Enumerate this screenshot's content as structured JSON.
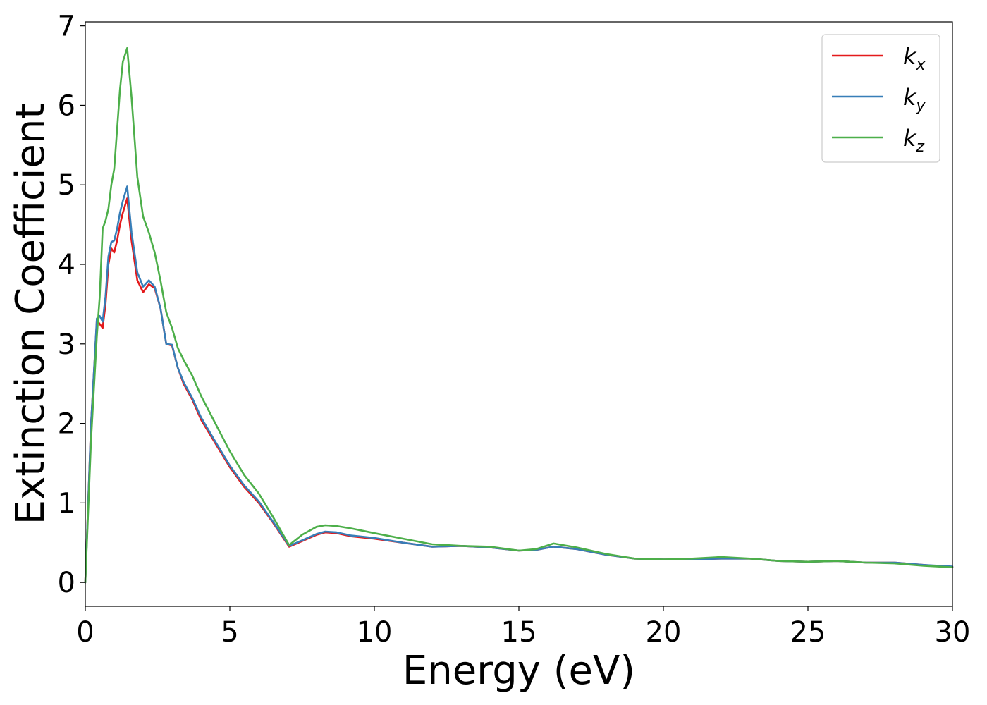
{
  "chart_data": {
    "type": "line",
    "xlabel": "Energy (eV)",
    "ylabel": "Extinction Coefficient",
    "xlim": [
      0,
      30
    ],
    "ylim": [
      -0.3,
      7.05
    ],
    "xticks": [
      0,
      5,
      10,
      15,
      20,
      25,
      30
    ],
    "xtick_labels": [
      "0",
      "5",
      "10",
      "15",
      "20",
      "25",
      "30"
    ],
    "yticks": [
      0,
      1,
      2,
      3,
      4,
      5,
      6,
      7
    ],
    "ytick_labels": [
      "0",
      "1",
      "2",
      "3",
      "4",
      "5",
      "6",
      "7"
    ],
    "grid": false,
    "legend_position": "top-right",
    "series": [
      {
        "name": "k_x",
        "legend_base": "k",
        "legend_sub": "x",
        "color": "#e41a1c",
        "x": [
          0,
          0.2,
          0.4,
          0.5,
          0.6,
          0.7,
          0.8,
          0.9,
          1.0,
          1.1,
          1.2,
          1.3,
          1.45,
          1.6,
          1.8,
          2.0,
          2.2,
          2.4,
          2.6,
          2.8,
          3.0,
          3.2,
          3.4,
          3.7,
          4.0,
          4.5,
          5.0,
          5.5,
          6.0,
          6.5,
          7.05,
          7.5,
          8.0,
          8.3,
          8.7,
          9.2,
          10.0,
          11.0,
          12.0,
          13.0,
          14.0,
          15.0,
          15.6,
          16.2,
          17.0,
          18.0,
          19.0,
          20.0,
          21.0,
          22.0,
          23.0,
          24.0,
          25.0,
          26.0,
          27.0,
          28.0,
          29.0,
          30.0
        ],
        "y": [
          0.0,
          2.0,
          3.3,
          3.25,
          3.2,
          3.5,
          4.0,
          4.2,
          4.15,
          4.3,
          4.5,
          4.65,
          4.83,
          4.3,
          3.8,
          3.65,
          3.75,
          3.7,
          3.45,
          3.0,
          2.98,
          2.7,
          2.5,
          2.3,
          2.05,
          1.75,
          1.45,
          1.2,
          1.0,
          0.75,
          0.45,
          0.52,
          0.6,
          0.63,
          0.62,
          0.58,
          0.55,
          0.5,
          0.45,
          0.46,
          0.44,
          0.4,
          0.41,
          0.45,
          0.42,
          0.35,
          0.3,
          0.29,
          0.29,
          0.3,
          0.3,
          0.27,
          0.26,
          0.27,
          0.25,
          0.25,
          0.22,
          0.19
        ]
      },
      {
        "name": "k_y",
        "legend_base": "k",
        "legend_sub": "y",
        "color": "#377eb8",
        "x": [
          0,
          0.2,
          0.4,
          0.5,
          0.6,
          0.7,
          0.8,
          0.9,
          1.0,
          1.1,
          1.2,
          1.3,
          1.45,
          1.6,
          1.8,
          2.0,
          2.2,
          2.4,
          2.6,
          2.8,
          3.0,
          3.2,
          3.4,
          3.7,
          4.0,
          4.5,
          5.0,
          5.5,
          6.0,
          6.5,
          7.05,
          7.5,
          8.0,
          8.3,
          8.7,
          9.2,
          10.0,
          11.0,
          12.0,
          13.0,
          14.0,
          15.0,
          15.6,
          16.2,
          17.0,
          18.0,
          19.0,
          20.0,
          21.0,
          22.0,
          23.0,
          24.0,
          25.0,
          26.0,
          27.0,
          28.0,
          29.0,
          30.0
        ],
        "y": [
          0.0,
          2.0,
          3.32,
          3.35,
          3.28,
          3.6,
          4.1,
          4.28,
          4.3,
          4.45,
          4.65,
          4.8,
          4.98,
          4.4,
          3.9,
          3.72,
          3.8,
          3.72,
          3.45,
          3.0,
          2.99,
          2.7,
          2.52,
          2.32,
          2.08,
          1.77,
          1.47,
          1.22,
          1.02,
          0.76,
          0.46,
          0.53,
          0.61,
          0.64,
          0.63,
          0.59,
          0.56,
          0.5,
          0.45,
          0.46,
          0.44,
          0.4,
          0.41,
          0.45,
          0.42,
          0.35,
          0.3,
          0.29,
          0.29,
          0.3,
          0.3,
          0.27,
          0.26,
          0.27,
          0.25,
          0.25,
          0.22,
          0.2
        ]
      },
      {
        "name": "k_z",
        "legend_base": "k",
        "legend_sub": "z",
        "color": "#4daf4a",
        "x": [
          0,
          0.2,
          0.4,
          0.5,
          0.6,
          0.7,
          0.8,
          0.9,
          1.0,
          1.1,
          1.2,
          1.3,
          1.45,
          1.6,
          1.8,
          2.0,
          2.2,
          2.4,
          2.6,
          2.8,
          3.0,
          3.2,
          3.4,
          3.7,
          4.0,
          4.5,
          5.0,
          5.5,
          6.0,
          6.5,
          7.05,
          7.5,
          8.0,
          8.3,
          8.7,
          9.2,
          10.0,
          11.0,
          12.0,
          13.0,
          14.0,
          15.0,
          15.6,
          16.2,
          17.0,
          18.0,
          19.0,
          20.0,
          21.0,
          22.0,
          23.0,
          24.0,
          25.0,
          26.0,
          27.0,
          28.0,
          29.0,
          30.0
        ],
        "y": [
          0.0,
          1.8,
          3.1,
          3.6,
          4.45,
          4.55,
          4.7,
          5.0,
          5.2,
          5.7,
          6.2,
          6.55,
          6.72,
          6.1,
          5.1,
          4.6,
          4.4,
          4.15,
          3.8,
          3.4,
          3.2,
          2.95,
          2.8,
          2.6,
          2.35,
          2.0,
          1.65,
          1.35,
          1.12,
          0.82,
          0.47,
          0.6,
          0.7,
          0.72,
          0.71,
          0.68,
          0.62,
          0.55,
          0.48,
          0.46,
          0.45,
          0.4,
          0.42,
          0.49,
          0.44,
          0.36,
          0.3,
          0.29,
          0.3,
          0.32,
          0.3,
          0.27,
          0.26,
          0.27,
          0.25,
          0.24,
          0.21,
          0.19
        ]
      }
    ]
  }
}
